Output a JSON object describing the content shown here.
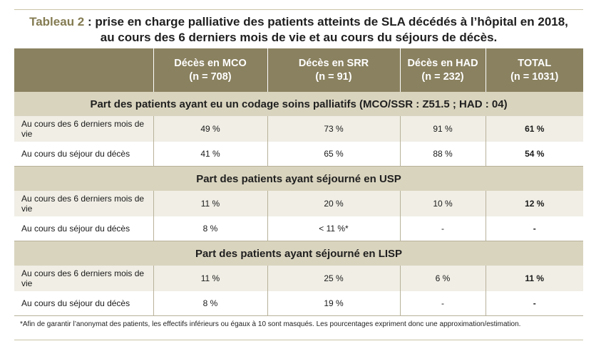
{
  "title": {
    "lead": "Tableau 2",
    "line1_rest": " : prise en charge palliative des patients atteints de SLA décédés à l’hôpital en 2018,",
    "line2": "au cours des 6 derniers mois de vie et au cours du séjours de décès."
  },
  "headers": [
    {
      "line1": "Décès en MCO",
      "line2": "(n = 708)"
    },
    {
      "line1": "Décès en SRR",
      "line2": "(n = 91)"
    },
    {
      "line1": "Décès en HAD",
      "line2": "(n = 232)"
    },
    {
      "line1": "TOTAL",
      "line2": "(n = 1031)"
    }
  ],
  "sections": [
    {
      "title": "Part des patients ayant eu un codage soins palliatifs (MCO/SSR : Z51.5 ; HAD : 04)",
      "rows": [
        {
          "label": "Au cours des 6 derniers mois de vie",
          "values": [
            "49 %",
            "73 %",
            "91 %",
            "61 %"
          ]
        },
        {
          "label": "Au cours du séjour du décès",
          "values": [
            "41 %",
            "65 %",
            "88 %",
            "54 %"
          ]
        }
      ]
    },
    {
      "title": "Part des patients ayant séjourné en USP",
      "rows": [
        {
          "label": "Au cours des 6 derniers mois de vie",
          "values": [
            "11 %",
            "20 %",
            "10 %",
            "12 %"
          ]
        },
        {
          "label": "Au cours du séjour du décès",
          "values": [
            "8 %",
            "< 11 %*",
            "-",
            "-"
          ]
        }
      ]
    },
    {
      "title": "Part des patients ayant séjourné en LISP",
      "rows": [
        {
          "label": "Au cours des 6 derniers mois de vie",
          "values": [
            "11 %",
            "25 %",
            "6 %",
            "11 %"
          ]
        },
        {
          "label": "Au cours du séjour du décès",
          "values": [
            "8 %",
            "19 %",
            "-",
            "-"
          ]
        }
      ]
    }
  ],
  "footnote": "*Afin de garantir l’anonymat des patients, les effectifs inférieurs ou égaux à 10 sont masqués. Les pourcentages expriment donc une approximation/estimation."
}
